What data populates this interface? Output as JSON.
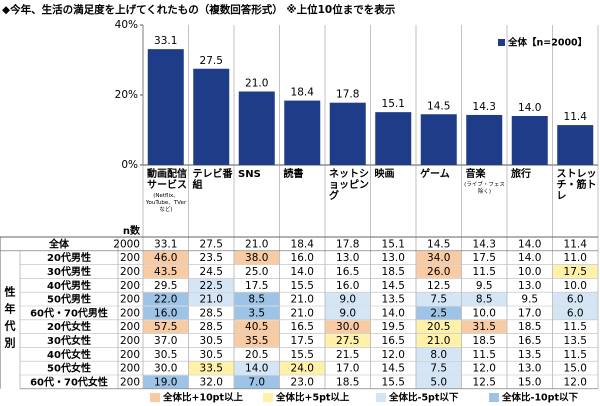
{
  "chart_data": {
    "type": "bar",
    "title": "◆今年、生活の満足度を上げてくれたもの（複数回答形式） ※上位10位までを表示",
    "categories": [
      "動画配信サービス",
      "テレビ番組",
      "SNS",
      "読書",
      "ネットショッピング",
      "映画",
      "ゲーム",
      "音楽",
      "旅行",
      "ストレッチ・筋トレ"
    ],
    "category_notes": [
      "(Netflix、YouTube、TVerなど)",
      null,
      null,
      null,
      null,
      null,
      null,
      "(ライブ・フェス除く)",
      null,
      null
    ],
    "series": [
      {
        "name": "全体【n=2000】",
        "color": "#1f3c88",
        "values": [
          33.1,
          27.5,
          21.0,
          18.4,
          17.8,
          15.1,
          14.5,
          14.3,
          14.0,
          11.4
        ],
        "value_labels": [
          "33.1",
          "27.5",
          "21.0",
          "18.4",
          "17.8",
          "15.1",
          "14.5",
          "14.3",
          "14.0",
          "11.4"
        ]
      }
    ],
    "ylim": [
      0,
      40
    ],
    "yticks": [
      {
        "value": 0,
        "label": "0%"
      },
      {
        "value": 20,
        "label": "20%"
      },
      {
        "value": 40,
        "label": "40%"
      }
    ],
    "legend": "top-right"
  },
  "table": {
    "n_header": "n数",
    "group_label": "性年代別",
    "rows": [
      {
        "label": "全体",
        "n": "2000",
        "values": [
          "33.1",
          "27.5",
          "21.0",
          "18.4",
          "17.8",
          "15.1",
          "14.5",
          "14.3",
          "14.0",
          "11.4"
        ]
      },
      {
        "label": "20代男性",
        "n": "200",
        "values": [
          "46.0",
          "23.5",
          "38.0",
          "16.0",
          "13.0",
          "13.0",
          "34.0",
          "17.5",
          "14.0",
          "11.0"
        ]
      },
      {
        "label": "30代男性",
        "n": "200",
        "values": [
          "43.5",
          "24.5",
          "25.0",
          "14.0",
          "16.5",
          "18.5",
          "26.0",
          "11.5",
          "10.0",
          "17.5"
        ]
      },
      {
        "label": "40代男性",
        "n": "200",
        "values": [
          "29.5",
          "22.5",
          "17.5",
          "15.5",
          "16.0",
          "14.5",
          "12.5",
          "9.5",
          "13.0",
          "10.0"
        ]
      },
      {
        "label": "50代男性",
        "n": "200",
        "values": [
          "22.0",
          "21.0",
          "8.5",
          "21.0",
          "9.0",
          "13.5",
          "7.5",
          "8.5",
          "9.5",
          "6.0"
        ]
      },
      {
        "label": "60代・70代男性",
        "n": "200",
        "values": [
          "16.0",
          "28.5",
          "3.5",
          "21.0",
          "9.0",
          "14.0",
          "2.5",
          "10.0",
          "17.0",
          "6.0"
        ]
      },
      {
        "label": "20代女性",
        "n": "200",
        "values": [
          "57.5",
          "28.5",
          "40.5",
          "16.5",
          "30.0",
          "19.5",
          "20.5",
          "31.5",
          "18.5",
          "11.5"
        ]
      },
      {
        "label": "30代女性",
        "n": "200",
        "values": [
          "37.0",
          "30.5",
          "35.5",
          "17.5",
          "27.5",
          "16.5",
          "21.0",
          "18.5",
          "16.5",
          "13.5"
        ]
      },
      {
        "label": "40代女性",
        "n": "200",
        "values": [
          "30.5",
          "30.5",
          "20.5",
          "15.5",
          "21.5",
          "12.0",
          "8.0",
          "11.5",
          "13.5",
          "11.5"
        ]
      },
      {
        "label": "50代女性",
        "n": "200",
        "values": [
          "30.0",
          "33.5",
          "14.0",
          "24.0",
          "17.0",
          "14.5",
          "7.5",
          "12.0",
          "13.0",
          "15.0"
        ]
      },
      {
        "label": "60代・70代女性",
        "n": "200",
        "values": [
          "19.0",
          "32.0",
          "7.0",
          "23.0",
          "18.5",
          "15.5",
          "5.0",
          "12.5",
          "15.0",
          "12.0"
        ]
      }
    ],
    "highlight_legend": [
      {
        "label": "全体比+10pt以上",
        "threshold": 10,
        "color": "#f8cba3"
      },
      {
        "label": "全体比+5pt以上",
        "threshold": 5,
        "color": "#fff2a8"
      },
      {
        "label": "全体比-5pt以下",
        "threshold": -5,
        "color": "#d4e6f6"
      },
      {
        "label": "全体比-10pt以下",
        "threshold": -10,
        "color": "#9dc3e6"
      }
    ]
  }
}
